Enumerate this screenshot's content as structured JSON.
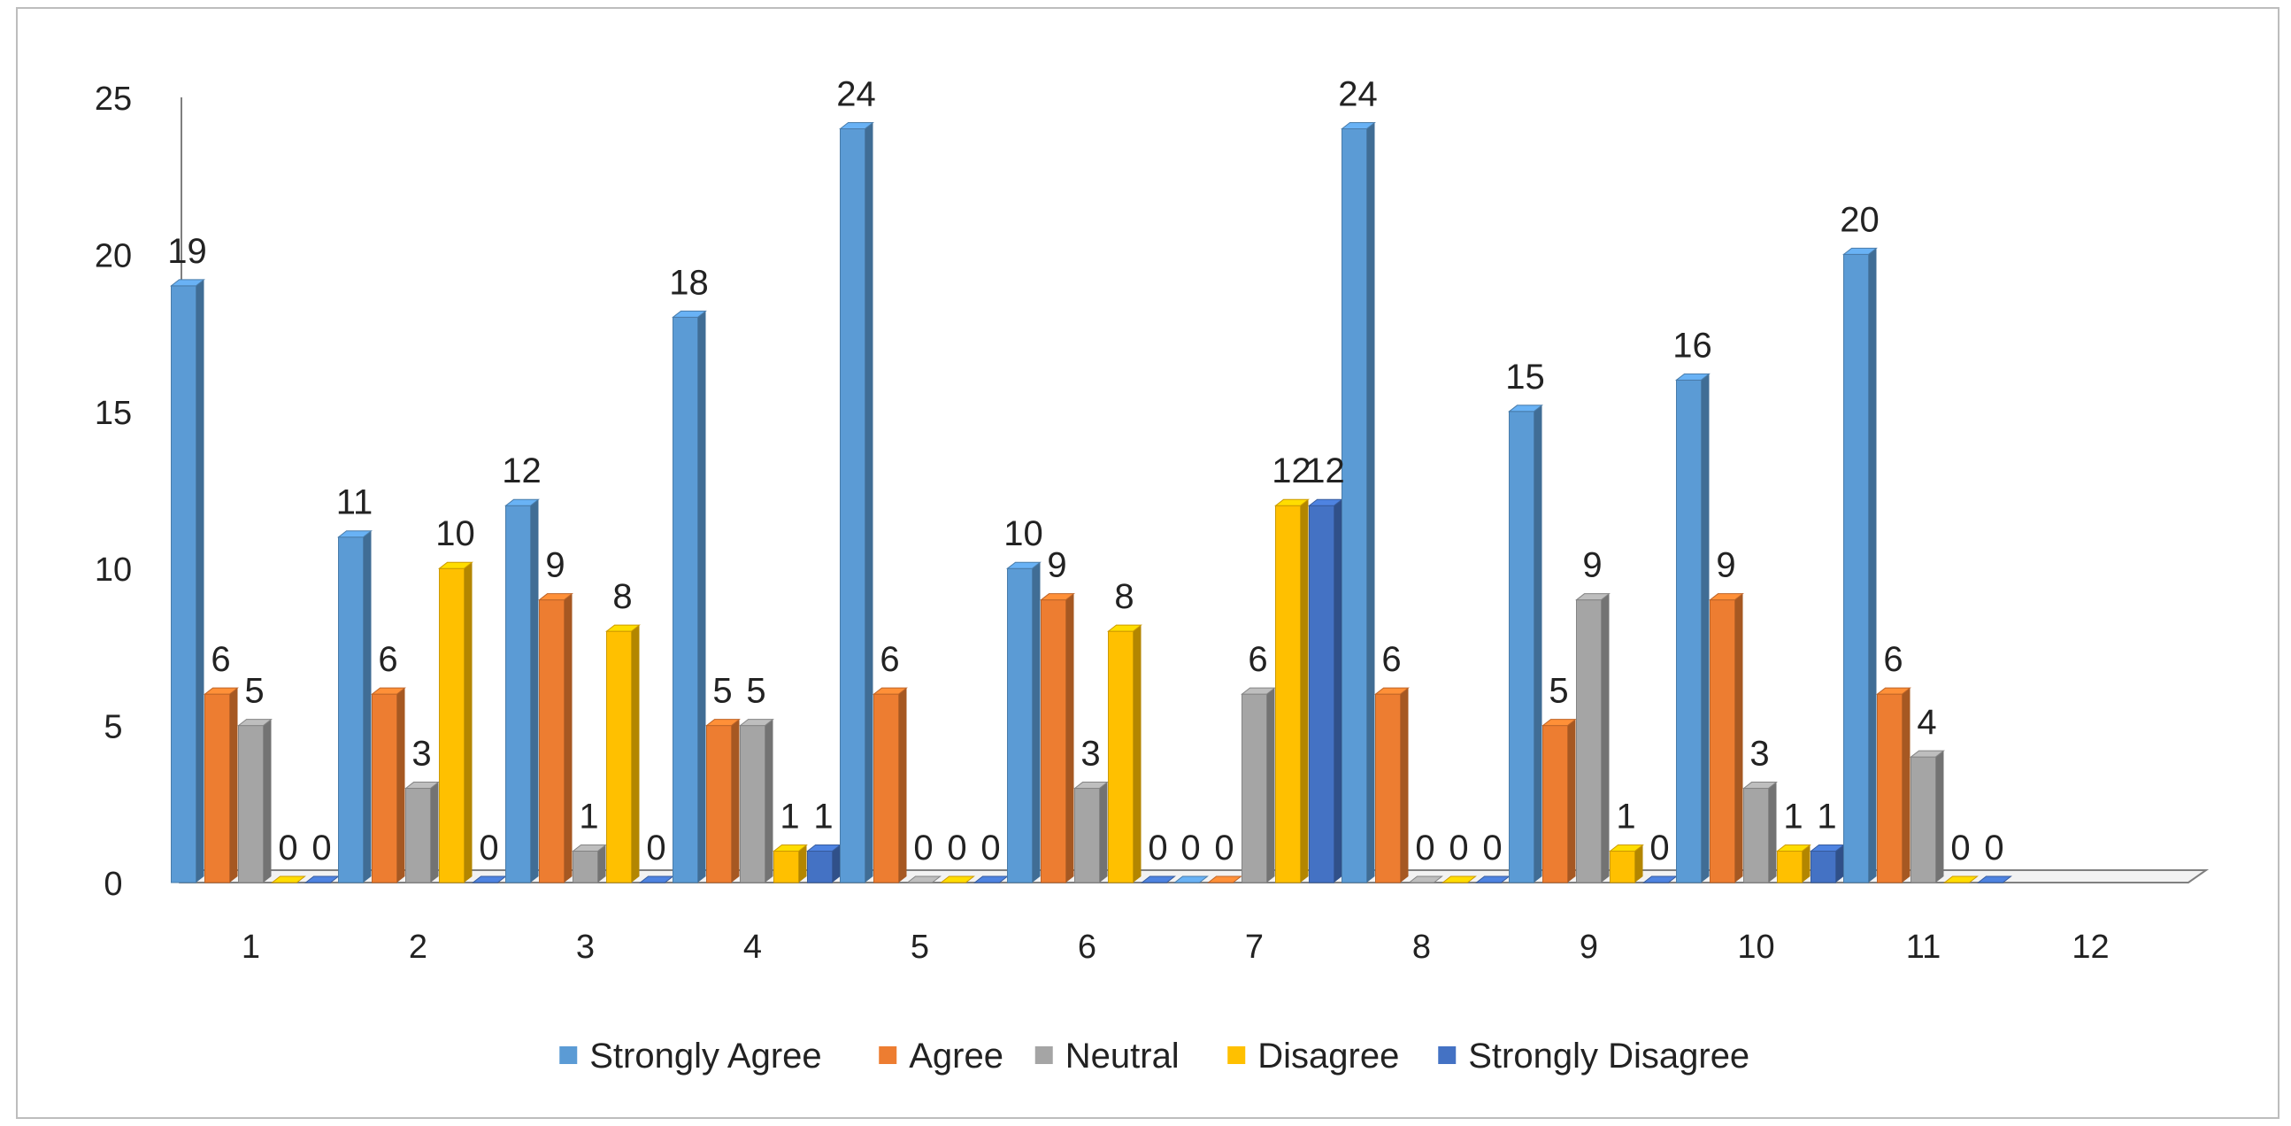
{
  "chart_data": {
    "type": "bar",
    "style": "3d-clustered-column",
    "title": "",
    "xlabel": "",
    "ylabel": "",
    "categories": [
      "1",
      "2",
      "3",
      "4",
      "5",
      "6",
      "7",
      "8",
      "9",
      "10",
      "11",
      "12"
    ],
    "ylim": [
      0,
      25
    ],
    "yticks": [
      0,
      5,
      10,
      15,
      20,
      25
    ],
    "grid": false,
    "legend_position": "bottom",
    "series": [
      {
        "name": "Strongly Agree",
        "color": "#5B9BD5",
        "values": [
          19,
          11,
          12,
          18,
          24,
          10,
          0,
          24,
          15,
          16,
          20,
          null
        ]
      },
      {
        "name": "Agree",
        "color": "#ED7D31",
        "values": [
          6,
          6,
          9,
          5,
          6,
          9,
          0,
          6,
          5,
          9,
          6,
          null
        ]
      },
      {
        "name": "Neutral",
        "color": "#A5A5A5",
        "values": [
          5,
          3,
          1,
          5,
          0,
          3,
          6,
          0,
          9,
          3,
          4,
          null
        ]
      },
      {
        "name": "Disagree",
        "color": "#FFC000",
        "values": [
          0,
          10,
          8,
          1,
          0,
          8,
          12,
          0,
          1,
          1,
          0,
          null
        ]
      },
      {
        "name": "Strongly Disagree",
        "color": "#4472C4",
        "values": [
          0,
          0,
          0,
          1,
          0,
          0,
          12,
          0,
          0,
          1,
          0,
          null
        ]
      }
    ],
    "data_labels": [
      [
        "19",
        "6",
        "5",
        "0",
        "0"
      ],
      [
        "11",
        "6",
        "3",
        "10",
        "0"
      ],
      [
        "12",
        "9",
        "1",
        "8",
        "0"
      ],
      [
        "18",
        "5",
        "5",
        "1",
        "1"
      ],
      [
        "24",
        "6",
        "0",
        "0",
        "0"
      ],
      [
        "10",
        "9",
        "3",
        "8",
        "0"
      ],
      [
        "0",
        "0",
        "6",
        "12",
        "12"
      ],
      [
        "24",
        "6",
        "0",
        "0",
        "0"
      ],
      [
        "15",
        "5",
        "9",
        "1",
        "0"
      ],
      [
        "16",
        "9",
        "3",
        "1",
        "1"
      ],
      [
        "20",
        "6",
        "4",
        "0",
        "0"
      ]
    ]
  }
}
